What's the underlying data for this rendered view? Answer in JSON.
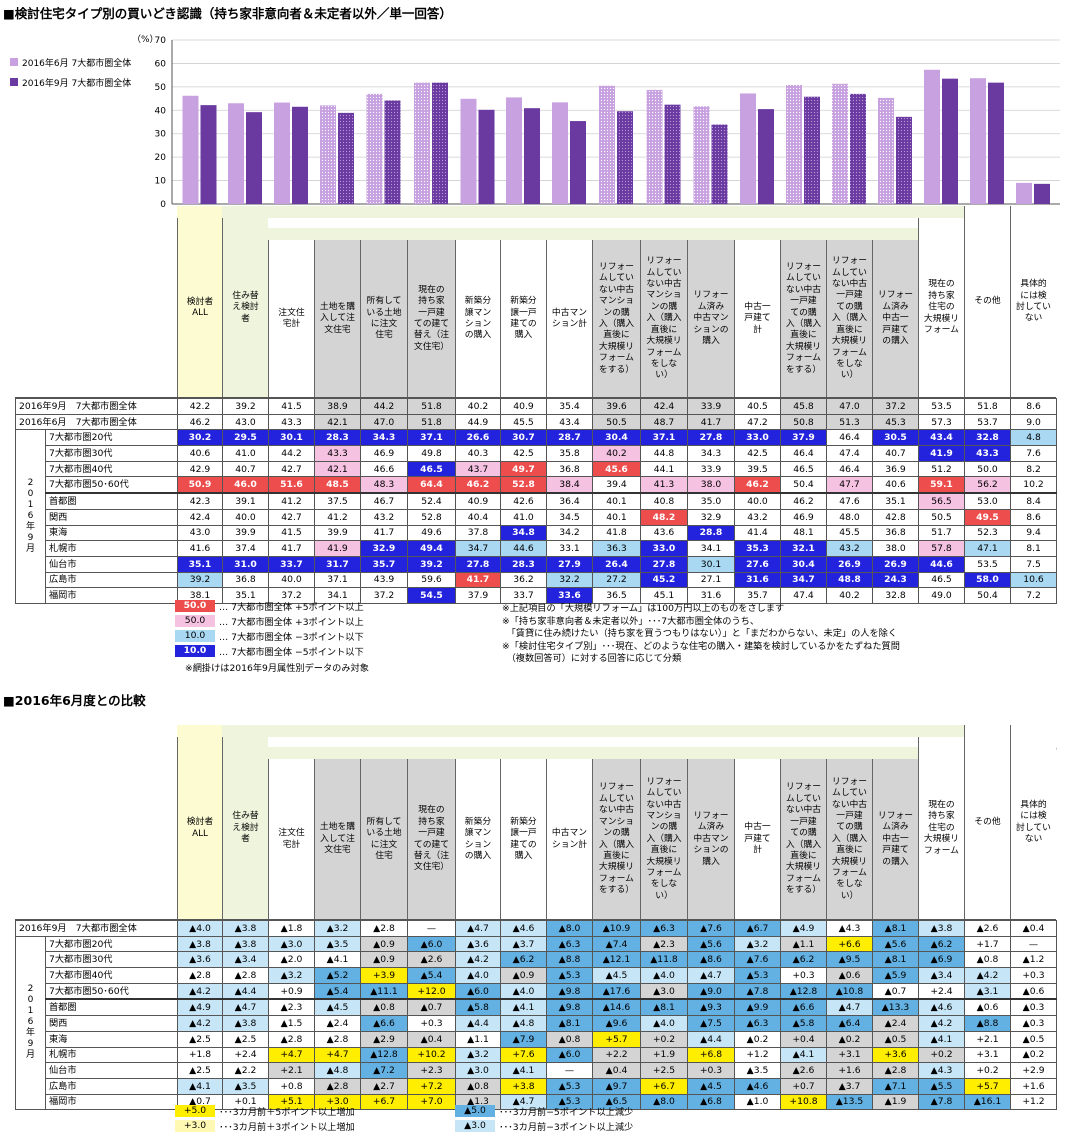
{
  "section1": {
    "title": "■検討住宅タイプ別の買いどき認識（持ち家非意向者＆未定者以外／単一回答）",
    "unit": "（%）"
  },
  "chart_data": {
    "type": "bar",
    "ylim": [
      0,
      70
    ],
    "yticks": [
      0,
      10,
      20,
      30,
      40,
      50,
      60,
      70
    ],
    "grid": true,
    "legend_position": "top-left",
    "categories": [
      "検討者ALL",
      "住み替え検討者",
      "注文住宅計",
      "土地を購入して注文住宅",
      "所有している土地に注文住宅",
      "現在の持ち家一戸建ての建て替え（注文住宅）",
      "新築分譲マンションの購入",
      "新築分譲一戸建ての購入",
      "中古マンション計",
      "リフォームしていない中古マンションの購入（購入直後に大規模リフォームをする）",
      "リフォームしていない中古マンションの購入（購入直後に大規模リフォームをしない）",
      "リフォーム済み中古マンションの購入",
      "中古一戸建て計",
      "リフォームしていない中古一戸建ての購入（購入直後に大規模リフォームをする）",
      "リフォームしていない中古一戸建ての購入（購入直後に大規模リフォームをしない）",
      "リフォーム済み中古一戸建ての購入",
      "現在の持ち家住宅の大規模リフォーム",
      "その他",
      "具体的には検討していない"
    ],
    "series": [
      {
        "name": "2016年6月 7大都市圏全体",
        "color": "#c8a2e0",
        "values": [
          46.2,
          43.0,
          43.3,
          42.1,
          47.0,
          51.8,
          44.9,
          45.5,
          43.4,
          50.5,
          48.7,
          41.7,
          47.2,
          50.8,
          51.3,
          45.3,
          57.3,
          53.7,
          9.0
        ]
      },
      {
        "name": "2016年9月 7大都市圏全体",
        "color": "#6a3aa0",
        "values": [
          42.2,
          39.2,
          41.5,
          38.9,
          44.2,
          51.8,
          40.2,
          40.9,
          35.4,
          39.6,
          42.4,
          33.9,
          40.5,
          45.8,
          47.0,
          37.2,
          53.5,
          51.8,
          8.6
        ]
      }
    ]
  },
  "headers": [
    "検討者\nALL",
    "住み替\nえ検討\n者",
    "注文住\n宅計",
    "土地を購\n入して注\n文住宅",
    "所有して\nいる土地\nに注文\n住宅",
    "現在の\n持ち家\n一戸建\nての建て\n替え（注\n文住宅）",
    "新築分\n譲マン\nション\nの購入",
    "新築分\n譲一戸\n建ての\n購入",
    "中古マン\nション計",
    "リフォー\nムしてい\nない中古\nマンショ\nンの購\n入（購入\n直後に\n大規模リ\nフォーム\nをする）",
    "リフォー\nムしてい\nない中古\nマンショ\nンの購\n入（購入\n直後に\n大規模リ\nフォーム\nをしな\nい）",
    "リフォー\nム済み\n中古マン\nションの\n購入",
    "中古一\n戸建て\n計",
    "リフォー\nムしてい\nない中古\n一戸建\nての購\n入（購入\n直後に\n大規模リ\nフォーム\nをする）",
    "リフォー\nムしてい\nない中古\n一戸建\nての購\n入（購入\n直後に\n大規模リ\nフォーム\nをしな\nい）",
    "リフォー\nム済み\n中古一\n戸建て\nの購入",
    "現在の\n持ち家\n住宅の\n大規模リ\nフォーム",
    "その他",
    "具体的\nには検\n討してい\nない"
  ],
  "table1": {
    "all_rows": [
      {
        "label": "2016年9月　7大都市圏全体",
        "values": [
          "42.2",
          "39.2",
          "41.5",
          "38.9",
          "44.2",
          "51.8",
          "40.2",
          "40.9",
          "35.4",
          "39.6",
          "42.4",
          "33.9",
          "40.5",
          "45.8",
          "47.0",
          "37.2",
          "53.5",
          "51.8",
          "8.6"
        ]
      },
      {
        "label": "2016年6月　7大都市圏全体",
        "values": [
          "46.2",
          "43.0",
          "43.3",
          "42.1",
          "47.0",
          "51.8",
          "44.9",
          "45.5",
          "43.4",
          "50.5",
          "48.7",
          "41.7",
          "47.2",
          "50.8",
          "51.3",
          "45.3",
          "57.3",
          "53.7",
          "9.0"
        ]
      }
    ],
    "year_label": "2\n0\n1\n6\n年\n9\n月",
    "rows": [
      {
        "label": "7大都市圏20代",
        "values": [
          "30.2",
          "29.5",
          "30.1",
          "28.3",
          "34.3",
          "37.1",
          "26.6",
          "30.7",
          "28.7",
          "30.4",
          "37.1",
          "27.8",
          "33.0",
          "37.9",
          "46.4",
          "30.5",
          "43.4",
          "32.8",
          "4.8"
        ],
        "codes": "BBBBBBBBBBBBBB0BBBL"
      },
      {
        "label": "7大都市圏30代",
        "values": [
          "40.6",
          "41.0",
          "44.2",
          "43.3",
          "46.9",
          "49.8",
          "40.3",
          "42.5",
          "35.8",
          "40.2",
          "44.8",
          "34.3",
          "42.5",
          "46.4",
          "47.4",
          "40.7",
          "41.9",
          "43.3",
          "7.6"
        ],
        "codes": "000P00000P000000BB0"
      },
      {
        "label": "7大都市圏40代",
        "values": [
          "42.9",
          "40.7",
          "42.7",
          "42.1",
          "46.6",
          "46.5",
          "43.7",
          "49.7",
          "36.8",
          "45.6",
          "44.1",
          "33.9",
          "39.5",
          "46.5",
          "46.4",
          "36.9",
          "51.2",
          "50.0",
          "8.2"
        ],
        "codes": "000P0BPRDR000000000"
      },
      {
        "label": "7大都市圏50･60代",
        "values": [
          "50.9",
          "46.0",
          "51.6",
          "48.5",
          "48.3",
          "64.4",
          "46.2",
          "52.8",
          "38.4",
          "39.4",
          "41.3",
          "38.0",
          "46.2",
          "50.4",
          "47.7",
          "40.6",
          "59.1",
          "56.2",
          "10.2"
        ],
        "codes": "RRRRPRRRP0PPR0P0RP0"
      },
      {
        "label": "首都圏",
        "values": [
          "42.3",
          "39.1",
          "41.2",
          "37.5",
          "46.7",
          "52.4",
          "40.9",
          "42.6",
          "36.4",
          "40.1",
          "40.8",
          "35.0",
          "40.0",
          "46.2",
          "47.6",
          "35.1",
          "56.5",
          "53.0",
          "8.4"
        ],
        "codes": "0000000000000000P00"
      },
      {
        "label": "関西",
        "values": [
          "42.4",
          "40.0",
          "42.7",
          "41.2",
          "43.2",
          "52.8",
          "40.4",
          "41.0",
          "34.5",
          "40.1",
          "48.2",
          "32.9",
          "43.2",
          "46.9",
          "48.0",
          "42.8",
          "50.5",
          "49.5",
          "8.6"
        ],
        "codes": "0000000000R000000R0"
      },
      {
        "label": "東海",
        "values": [
          "43.0",
          "39.9",
          "41.5",
          "39.9",
          "41.7",
          "49.6",
          "37.8",
          "34.8",
          "34.2",
          "41.8",
          "43.6",
          "28.8",
          "41.4",
          "48.1",
          "45.5",
          "36.8",
          "51.7",
          "52.3",
          "9.4"
        ],
        "codes": "0000000B000B0000000"
      },
      {
        "label": "札幌市",
        "values": [
          "41.6",
          "37.4",
          "41.7",
          "41.9",
          "32.9",
          "49.4",
          "34.7",
          "44.6",
          "33.1",
          "36.3",
          "33.0",
          "34.1",
          "35.3",
          "32.1",
          "43.2",
          "38.0",
          "57.8",
          "47.1",
          "8.1"
        ],
        "codes": "000PBBLL0LB0BBL0PL0"
      },
      {
        "label": "仙台市",
        "values": [
          "35.1",
          "31.0",
          "33.7",
          "31.7",
          "35.7",
          "39.2",
          "27.8",
          "28.3",
          "27.9",
          "26.4",
          "27.8",
          "30.1",
          "27.6",
          "30.4",
          "26.9",
          "26.9",
          "44.6",
          "53.5",
          "7.5"
        ],
        "codes": "BBBBBBBBBBBLBBBBB00"
      },
      {
        "label": "広島市",
        "values": [
          "39.2",
          "36.8",
          "40.0",
          "37.1",
          "43.9",
          "59.6",
          "41.7",
          "36.2",
          "32.2",
          "27.2",
          "45.2",
          "27.1",
          "31.6",
          "34.7",
          "48.8",
          "24.3",
          "46.5",
          "58.0",
          "10.6"
        ],
        "codes": "L00000R0LLB0BBBB0BL"
      },
      {
        "label": "福岡市",
        "values": [
          "38.1",
          "35.1",
          "37.2",
          "34.1",
          "37.2",
          "54.5",
          "37.9",
          "33.7",
          "33.6",
          "36.5",
          "45.1",
          "31.6",
          "35.7",
          "47.4",
          "40.2",
          "32.8",
          "49.0",
          "50.4",
          "7.2"
        ],
        "codes": "00000B00B0000000000"
      }
    ]
  },
  "legend1": [
    {
      "value": "50.0",
      "text": "…  7大都市圏全体 +5ポイント以上",
      "cls": "c-red"
    },
    {
      "value": "50.0",
      "text": "…  7大都市圏全体 +3ポイント以上",
      "cls": "c-pink"
    },
    {
      "value": "10.0",
      "text": "…  7大都市圏全体 −3ポイント以下",
      "cls": "c-lblue"
    },
    {
      "value": "10.0",
      "text": "…  7大都市圏全体 −5ポイント以下",
      "cls": "c-blue"
    }
  ],
  "legend1_note": "※網掛けは2016年9月属性別データのみ対象",
  "notes1": [
    "※上記項目の「大規模リフォーム」は100万円以上のものをさします",
    "※「持ち家非意向者＆未定者以外」･･･7大都市圏全体のうち、",
    "　「賃貸に住み続けたい（持ち家を買うつもりはない）」と「まだわからない、未定」の人を除く",
    "※「検討住宅タイプ別」･･･現在、どのような住宅の購入・建築を検討しているかをたずねた質問",
    "　（複数回答可）に対する回答に応じて分類"
  ],
  "section2": {
    "title": "■2016年6月度との比較",
    "unit": "（%）"
  },
  "table2": {
    "all_rows": [
      {
        "label": "2016年9月　7大都市圏全体",
        "values": [
          "▲4.0",
          "▲3.8",
          "▲1.8",
          "▲3.2",
          "▲2.8",
          "—",
          "▲4.7",
          "▲4.6",
          "▲8.0",
          "▲10.9",
          "▲6.3",
          "▲7.6",
          "▲6.7",
          "▲4.9",
          "▲4.3",
          "▲8.1",
          "▲3.8",
          "▲2.6",
          "▲0.4"
        ],
        "codes": "LL0L0-LLBBBBBL0BL00"
      }
    ],
    "year_label": "2\n0\n1\n6\n年\n9\n月",
    "rows": [
      {
        "label": "7大都市圏20代",
        "values": [
          "▲3.8",
          "▲3.8",
          "▲3.0",
          "▲3.5",
          "▲0.9",
          "▲6.0",
          "▲3.6",
          "▲3.7",
          "▲6.3",
          "▲7.4",
          "▲2.3",
          "▲5.6",
          "▲3.2",
          "▲1.1",
          "+6.6",
          "▲5.6",
          "▲6.2",
          "+1.7",
          "—"
        ],
        "codes": "LLLLGBLLBBGBLGYBB00"
      },
      {
        "label": "7大都市圏30代",
        "values": [
          "▲3.6",
          "▲3.4",
          "▲2.0",
          "▲4.1",
          "▲0.9",
          "▲2.6",
          "▲4.2",
          "▲6.2",
          "▲8.8",
          "▲12.1",
          "▲11.8",
          "▲8.6",
          "▲7.6",
          "▲6.2",
          "▲9.5",
          "▲8.1",
          "▲6.9",
          "▲0.8",
          "▲1.2"
        ],
        "codes": "LL00GGLBBBBBBBBBB00"
      },
      {
        "label": "7大都市圏40代",
        "values": [
          "▲2.8",
          "▲2.8",
          "▲3.2",
          "▲5.2",
          "+3.9",
          "▲5.4",
          "▲4.0",
          "▲0.9",
          "▲5.3",
          "▲4.5",
          "▲4.0",
          "▲4.7",
          "▲5.3",
          "+0.3",
          "▲0.6",
          "▲5.9",
          "▲3.4",
          "▲4.2",
          "+0.3"
        ],
        "codes": "00LBYBLGBLLLB0GBLL0"
      },
      {
        "label": "7大都市圏50･60代",
        "values": [
          "▲4.2",
          "▲4.4",
          "+0.9",
          "▲5.4",
          "▲11.1",
          "+12.0",
          "▲6.0",
          "▲4.0",
          "▲9.8",
          "▲17.6",
          "▲3.0",
          "▲9.0",
          "▲7.8",
          "▲12.8",
          "▲10.8",
          "▲0.7",
          "+2.4",
          "▲3.1",
          "▲0.6"
        ],
        "codes": "LL0BBYBLBBGBBBB00L0"
      },
      {
        "label": "首都圏",
        "values": [
          "▲4.9",
          "▲4.7",
          "▲2.3",
          "▲4.5",
          "▲0.8",
          "▲0.7",
          "▲5.8",
          "▲4.1",
          "▲9.8",
          "▲14.6",
          "▲8.1",
          "▲9.3",
          "▲9.9",
          "▲6.6",
          "▲4.7",
          "▲13.3",
          "▲4.6",
          "▲0.6",
          "▲0.3"
        ],
        "codes": "LL0LGGBLBBBBBBLBL00"
      },
      {
        "label": "関西",
        "values": [
          "▲4.2",
          "▲3.8",
          "▲1.5",
          "▲2.4",
          "▲6.6",
          "+0.3",
          "▲4.4",
          "▲4.8",
          "▲8.1",
          "▲9.6",
          "▲4.0",
          "▲7.5",
          "▲6.3",
          "▲5.8",
          "▲6.4",
          "▲2.4",
          "▲4.2",
          "▲8.8",
          "▲0.3"
        ],
        "codes": "LL00B0LLBBLBBBBGLB0"
      },
      {
        "label": "東海",
        "values": [
          "▲2.5",
          "▲2.5",
          "▲2.8",
          "▲2.8",
          "▲2.9",
          "▲0.4",
          "▲1.1",
          "▲7.9",
          "▲0.8",
          "+5.7",
          "+0.2",
          "▲4.4",
          "▲0.2",
          "+0.4",
          "▲0.2",
          "▲0.5",
          "▲4.1",
          "+2.1",
          "▲0.5"
        ],
        "codes": "0000GG0BGYGL0GGGL00"
      },
      {
        "label": "札幌市",
        "values": [
          "+1.8",
          "+2.4",
          "+4.7",
          "+4.7",
          "▲12.8",
          "+10.2",
          "▲3.2",
          "+7.6",
          "▲6.0",
          "+2.2",
          "+1.9",
          "+6.8",
          "+1.2",
          "▲4.1",
          "+3.1",
          "+3.6",
          "+0.2",
          "+3.1",
          "▲0.2"
        ],
        "codes": "00YYBYLYBGGY0LGYG00"
      },
      {
        "label": "仙台市",
        "values": [
          "▲2.5",
          "▲2.2",
          "+2.1",
          "▲4.8",
          "▲7.2",
          "+2.3",
          "▲3.0",
          "▲4.1",
          "—",
          "▲0.4",
          "+2.5",
          "+0.3",
          "▲3.5",
          "▲2.6",
          "+1.6",
          "▲2.8",
          "▲4.3",
          "+0.2",
          "+2.9"
        ],
        "codes": "00GLBGLL-GGG0GGGL00"
      },
      {
        "label": "広島市",
        "values": [
          "▲4.1",
          "▲3.5",
          "+0.8",
          "▲2.8",
          "▲2.7",
          "+7.2",
          "▲0.8",
          "+3.8",
          "▲5.3",
          "▲9.7",
          "+6.7",
          "▲4.5",
          "▲4.6",
          "+0.7",
          "▲3.7",
          "▲7.1",
          "▲5.5",
          "+5.7",
          "+1.6"
        ],
        "codes": "LL0GGYGYBBYBBGGBBY0"
      },
      {
        "label": "福岡市",
        "values": [
          "▲0.7",
          "+0.1",
          "+5.1",
          "+3.0",
          "+6.7",
          "+7.0",
          "▲1.3",
          "▲4.7",
          "▲5.3",
          "▲6.5",
          "▲8.0",
          "▲6.8",
          "▲1.0",
          "+10.8",
          "▲13.5",
          "▲1.9",
          "▲7.8",
          "▲16.1",
          "+1.2"
        ],
        "codes": "00YYYYGLBBBB0YBGBB0"
      }
    ]
  },
  "legend2": [
    {
      "value": "+5.0",
      "text": "･･･3カ月前＋5ポイント以上増加",
      "cls": "c-y5"
    },
    {
      "value": "+3.0",
      "text": "･･･3カ月前＋3ポイント以上増加",
      "cls": "c-y3"
    },
    {
      "value": "▲5.0",
      "text": "･･･3カ月前−5ポイント以上減少",
      "cls": "c-b5"
    },
    {
      "value": "▲3.0",
      "text": "･･･3カ月前−3ポイント以上減少",
      "cls": "c-b3"
    }
  ]
}
